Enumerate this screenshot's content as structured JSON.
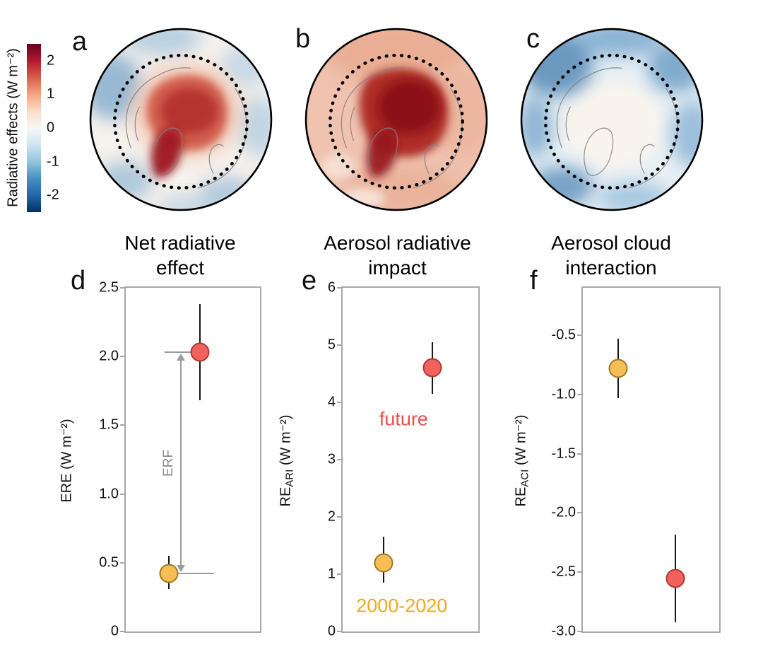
{
  "figure": {
    "colorbar": {
      "label": "Radiative effects (W m⁻²)",
      "range": [
        -2.5,
        2.5
      ],
      "ticks": [
        {
          "label": "2",
          "value": 2
        },
        {
          "label": "1",
          "value": 1
        },
        {
          "label": "0",
          "value": 0
        },
        {
          "label": "-1",
          "value": -1
        },
        {
          "label": "-2",
          "value": -2
        }
      ],
      "gradient": [
        "#67001f",
        "#b2182b",
        "#d6604d",
        "#f4a582",
        "#fddbc7",
        "#f7f7f7",
        "#d1e5f0",
        "#92c5de",
        "#4393c3",
        "#2166ac",
        "#053061"
      ]
    },
    "map_panels": [
      {
        "letter": "a",
        "title": "Net radiative effect"
      },
      {
        "letter": "b",
        "title": "Aerosol radiative impact"
      },
      {
        "letter": "c",
        "title": "Aerosol cloud interaction"
      }
    ]
  },
  "chart_data": [
    {
      "id": "d",
      "type": "scatter",
      "letter": "d",
      "ylabel_pre": "ERE",
      "ylabel_sub": "",
      "ylabel_post": " (W m⁻²)",
      "ylim": [
        0,
        2.5
      ],
      "yticks": [
        {
          "label": "0",
          "value": 0
        },
        {
          "label": "0.5",
          "value": 0.5
        },
        {
          "label": "1.0",
          "value": 1.0
        },
        {
          "label": "1.5",
          "value": 1.5
        },
        {
          "label": "2.0",
          "value": 2.0
        },
        {
          "label": "2.5",
          "value": 2.5
        }
      ],
      "series": [
        {
          "name": "2000-2020",
          "x": 0.32,
          "y": 0.42,
          "err": [
            0.31,
            0.55
          ],
          "color": "#F7BE56",
          "edge": "#9c7a22"
        },
        {
          "name": "future",
          "x": 0.55,
          "y": 2.03,
          "err": [
            1.68,
            2.38
          ],
          "color": "#F2625D",
          "edge": "#aa3a36"
        }
      ],
      "annotations": [
        {
          "type": "range-arrow",
          "label": "ERF",
          "y_low": 0.42,
          "y_high": 2.03,
          "x": 0.41,
          "line_low": [
            0.32,
            0.66
          ],
          "line_high": [
            0.29,
            0.55
          ]
        }
      ]
    },
    {
      "id": "e",
      "type": "scatter",
      "letter": "e",
      "ylabel_pre": "RE",
      "ylabel_sub": "ARI",
      "ylabel_post": " (W m⁻²)",
      "ylim": [
        0,
        6
      ],
      "yticks": [
        {
          "label": "0",
          "value": 0
        },
        {
          "label": "1",
          "value": 1
        },
        {
          "label": "2",
          "value": 2
        },
        {
          "label": "3",
          "value": 3
        },
        {
          "label": "4",
          "value": 4
        },
        {
          "label": "5",
          "value": 5
        },
        {
          "label": "6",
          "value": 6
        }
      ],
      "series": [
        {
          "name": "2000-2020",
          "x": 0.3,
          "y": 1.2,
          "err": [
            0.85,
            1.65
          ],
          "color": "#F7BE56",
          "edge": "#9c7a22"
        },
        {
          "name": "future",
          "x": 0.66,
          "y": 4.6,
          "err": [
            4.15,
            5.05
          ],
          "color": "#F2625D",
          "edge": "#aa3a36"
        }
      ],
      "annotations": [
        {
          "type": "text",
          "text": "future",
          "color": "#E8504B",
          "x": 0.27,
          "y": 3.7
        },
        {
          "type": "text",
          "text": "2000-2020",
          "color": "#F0A81C",
          "x": 0.1,
          "y": 0.45
        }
      ]
    },
    {
      "id": "f",
      "type": "scatter",
      "letter": "f",
      "ylabel_pre": "RE",
      "ylabel_sub": "ACI",
      "ylabel_post": " (W m⁻²)",
      "ylim": [
        -3.0,
        -0.1
      ],
      "yticks": [
        {
          "label": "-0.5",
          "value": -0.5
        },
        {
          "label": "-1.0",
          "value": -1.0
        },
        {
          "label": "-1.5",
          "value": -1.5
        },
        {
          "label": "-2.0",
          "value": -2.0
        },
        {
          "label": "-2.5",
          "value": -2.5
        },
        {
          "label": "-3.0",
          "value": -3.0
        }
      ],
      "series": [
        {
          "name": "2000-2020",
          "x": 0.26,
          "y": -0.78,
          "err": [
            -1.03,
            -0.53
          ],
          "color": "#F7BE56",
          "edge": "#9c7a22"
        },
        {
          "name": "future",
          "x": 0.68,
          "y": -2.55,
          "err": [
            -2.92,
            -2.18
          ],
          "color": "#F2625D",
          "edge": "#aa3a36"
        }
      ],
      "annotations": []
    }
  ]
}
